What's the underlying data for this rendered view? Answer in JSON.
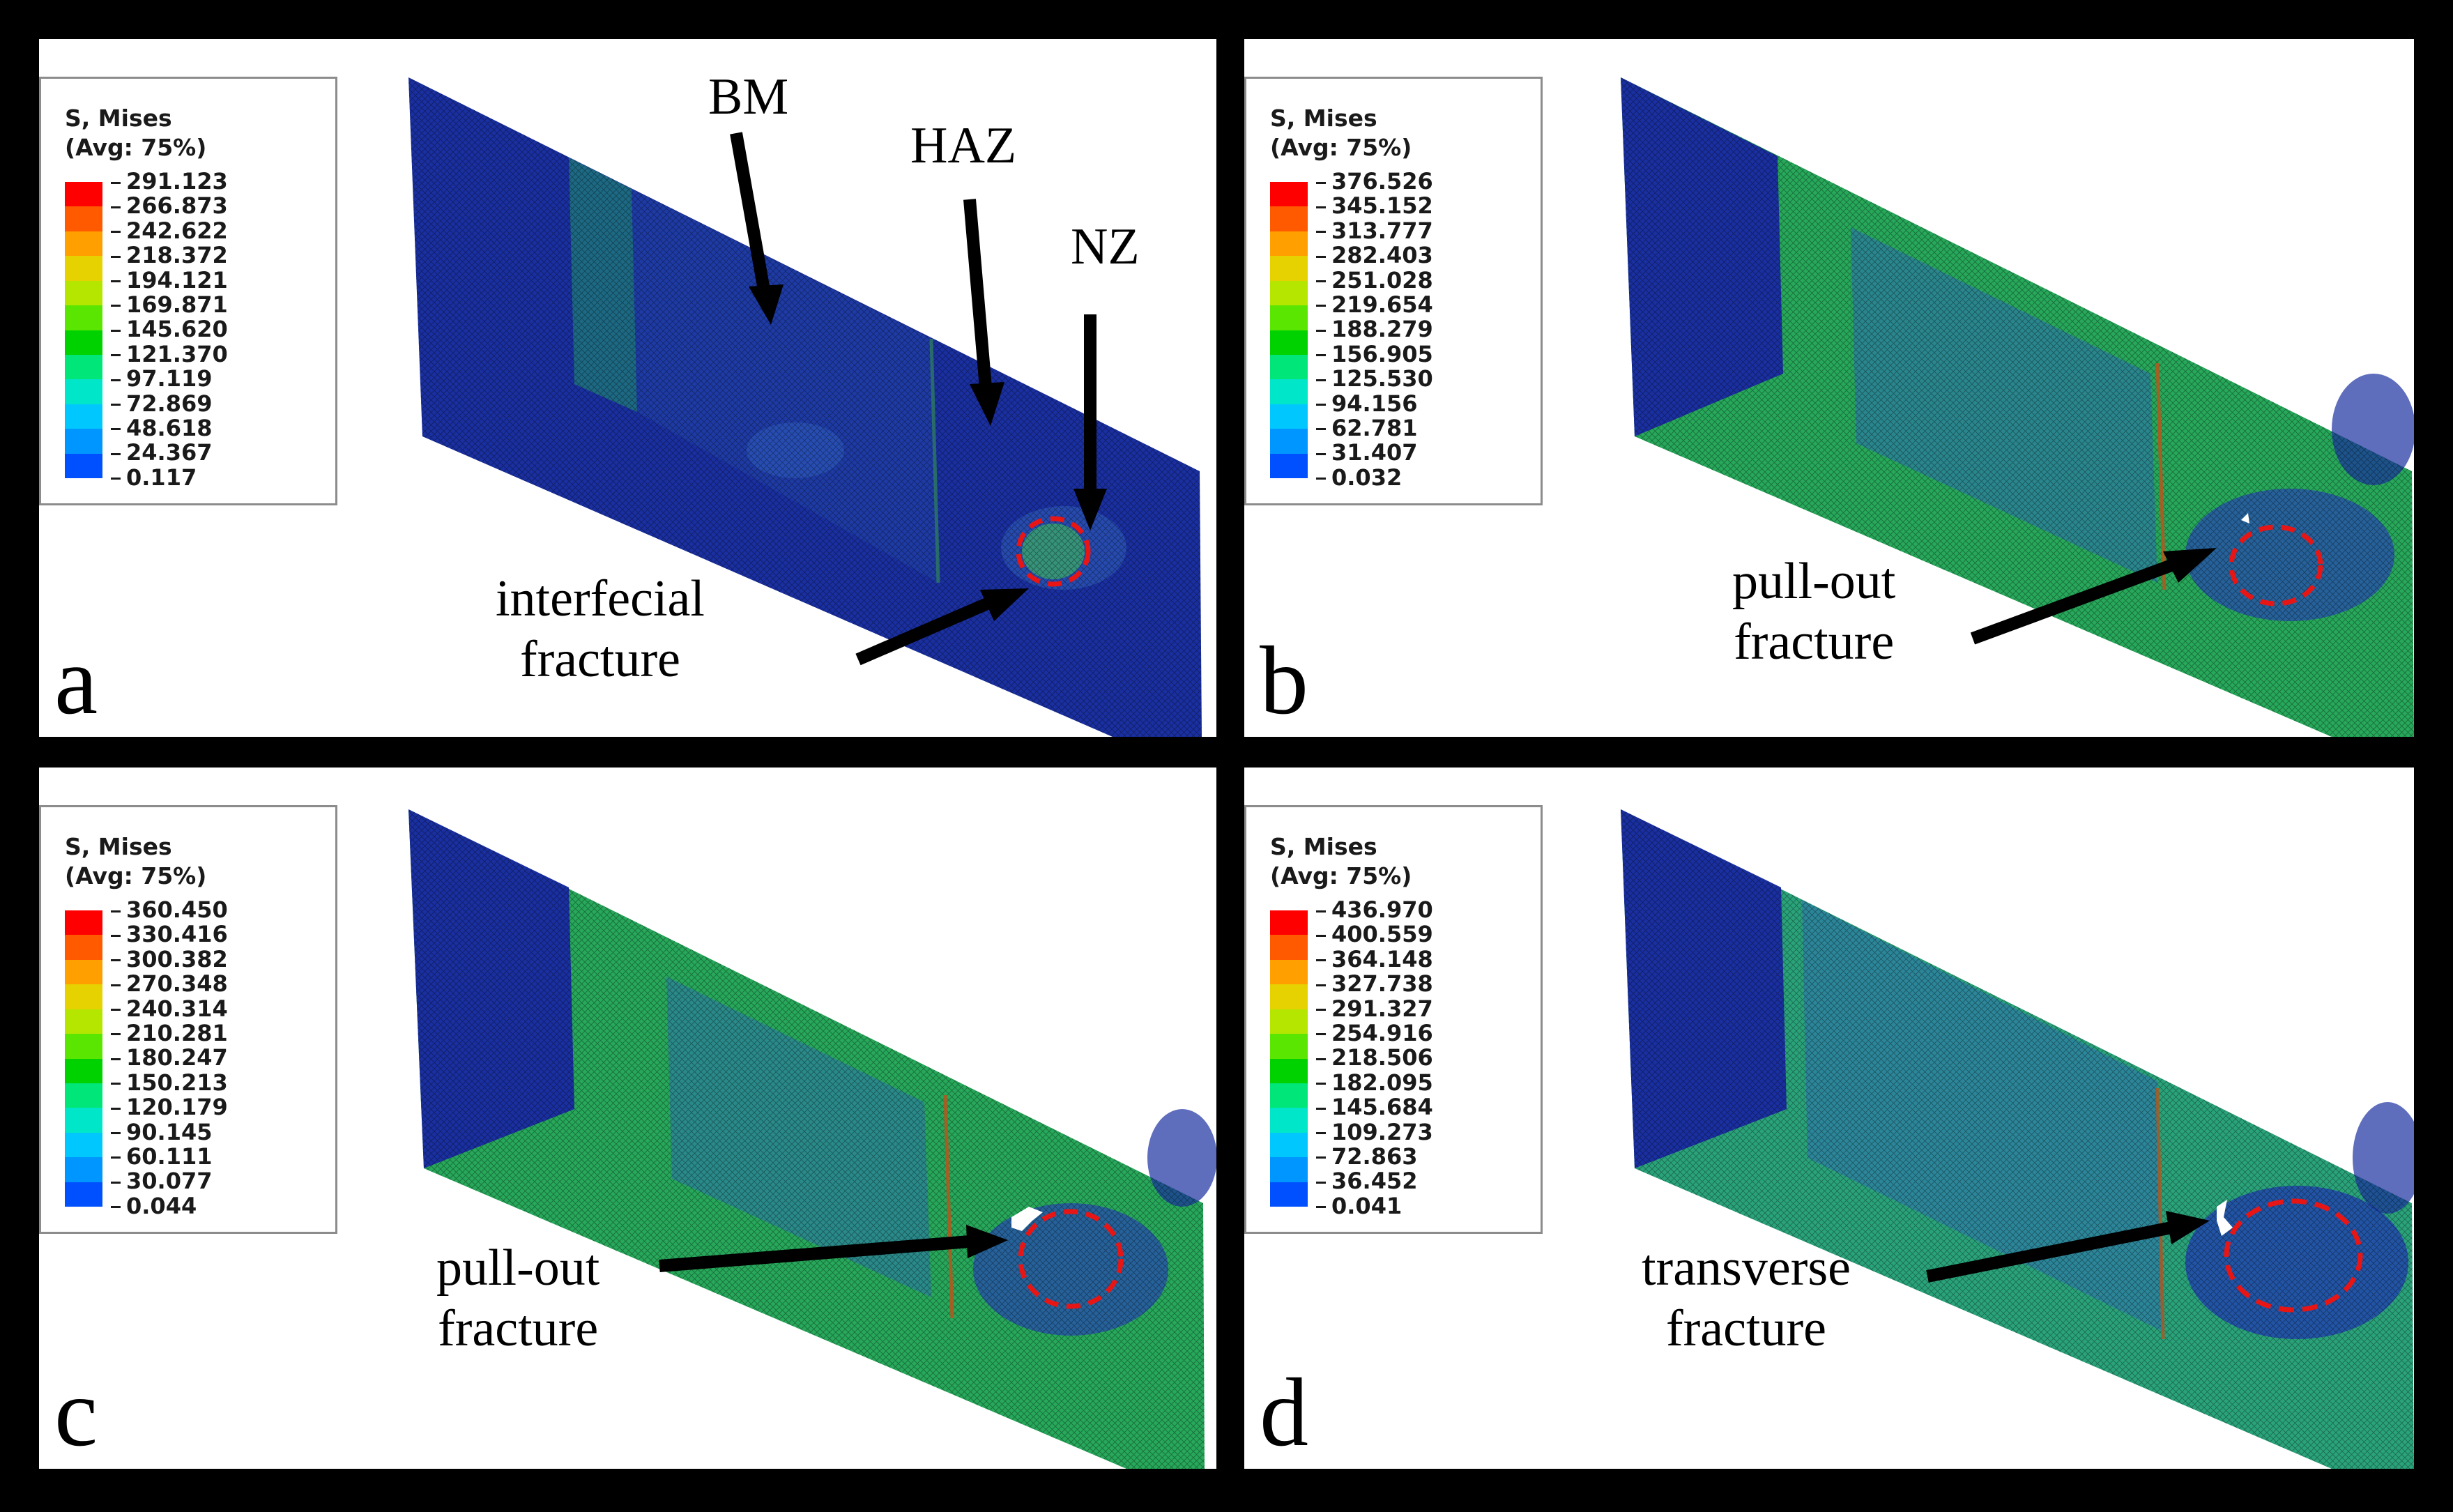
{
  "legend_title": "S, Mises\n(Avg: 75%)",
  "legend_colors": [
    "#ff0000",
    "#ff5a00",
    "#ffa000",
    "#e6d200",
    "#b4e600",
    "#5ae600",
    "#00d200",
    "#00e678",
    "#00e6c8",
    "#00c8ff",
    "#0096ff",
    "#0050ff",
    "#0000e6"
  ],
  "panels": [
    {
      "letter": "a",
      "legend_values": [
        "291.123",
        "266.873",
        "242.622",
        "218.372",
        "194.121",
        "169.871",
        "145.620",
        "121.370",
        "97.119",
        "72.869",
        "48.618",
        "24.367",
        "0.117"
      ],
      "labels": {
        "bm": "BM",
        "haz": "HAZ",
        "nz": "NZ",
        "fracture": "interfecial\nfracture"
      }
    },
    {
      "letter": "b",
      "legend_values": [
        "376.526",
        "345.152",
        "313.777",
        "282.403",
        "251.028",
        "219.654",
        "188.279",
        "156.905",
        "125.530",
        "94.156",
        "62.781",
        "31.407",
        "0.032"
      ],
      "labels": {
        "fracture": "pull-out\nfracture"
      }
    },
    {
      "letter": "c",
      "legend_values": [
        "360.450",
        "330.416",
        "300.382",
        "270.348",
        "240.314",
        "210.281",
        "180.247",
        "150.213",
        "120.179",
        "90.145",
        "60.111",
        "30.077",
        "0.044"
      ],
      "labels": {
        "fracture": "pull-out\nfracture"
      }
    },
    {
      "letter": "d",
      "legend_values": [
        "436.970",
        "400.559",
        "364.148",
        "327.738",
        "291.327",
        "254.916",
        "218.506",
        "182.095",
        "145.684",
        "109.273",
        "72.863",
        "36.452",
        "0.041"
      ],
      "labels": {
        "fracture": "transverse\nfracture"
      }
    }
  ]
}
